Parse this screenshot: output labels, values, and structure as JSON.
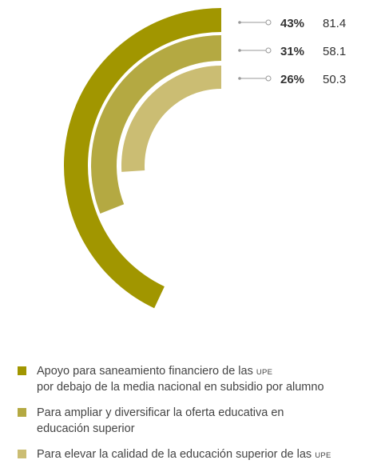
{
  "chart_data": {
    "type": "radial-bar",
    "series": [
      {
        "percent_label": "43%",
        "value_label": "81.4",
        "value": 81.4,
        "percent": 43,
        "color": "#a19600",
        "legend": {
          "lines": [
            "Apoyo para saneamiento financiero de las ",
            "por debajo de la media nacional en subsidio por alumno"
          ],
          "abbr": "UPE"
        }
      },
      {
        "percent_label": "31%",
        "value_label": "58.1",
        "value": 58.1,
        "percent": 31,
        "color": "#b4a942",
        "legend": {
          "lines": [
            "Para ampliar y diversificar la oferta educativa en",
            "educación superior"
          ],
          "abbr": ""
        }
      },
      {
        "percent_label": "26%",
        "value_label": "50.3",
        "value": 50.3,
        "percent": 26,
        "color": "#cbbd73",
        "legend": {
          "lines": [
            "Para elevar la calidad de la educación superior de las ",
            ""
          ],
          "abbr": "UPE"
        }
      }
    ]
  }
}
